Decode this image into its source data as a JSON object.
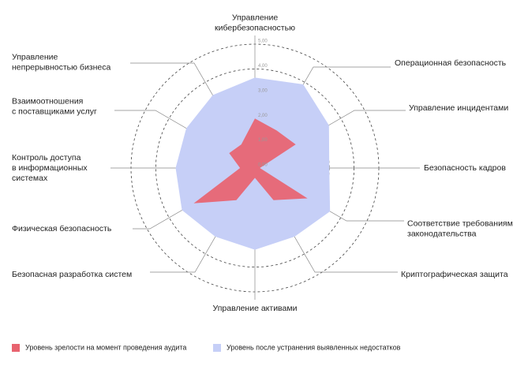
{
  "chart_data": {
    "type": "radar",
    "categories": [
      "Управление\nкибербезопасностью",
      "Операционная безопасность",
      "Управление инцидентами",
      "Безопасность кадров",
      "Соответствие требованиям\nзаконодательства",
      "Криптографическая защита",
      "Управление активами",
      "Безопасная разработка систем",
      "Физическая безопасность",
      "Контроль доступа\nв информационных\nсистемах",
      "Взаимоотношения\nс поставщиками услуг",
      "Управление\nнепрерывностью бизнеса"
    ],
    "series": [
      {
        "name": "Уровень после устранения выявленных недостатков",
        "color": "#c6cff7",
        "values": [
          3.65,
          3.9,
          3.45,
          3.0,
          3.5,
          3.2,
          3.3,
          3.2,
          3.4,
          3.2,
          3.2,
          3.4
        ]
      },
      {
        "name": "Уровень зрелости на момент проведения аудита",
        "color": "#e8636f",
        "values": [
          2.0,
          1.75,
          1.9,
          0.2,
          2.45,
          1.5,
          0.4,
          1.5,
          2.85,
          0.6,
          1.2,
          1.1
        ]
      }
    ],
    "ylim": [
      0,
      5
    ],
    "yticks": [
      {
        "value": 0,
        "label": "0,00"
      },
      {
        "value": 1,
        "label": "1,00"
      },
      {
        "value": 2,
        "label": "2,00"
      },
      {
        "value": 3,
        "label": "3,00"
      },
      {
        "value": 4,
        "label": "4,00"
      },
      {
        "value": 5,
        "label": "5,00"
      }
    ]
  }
}
